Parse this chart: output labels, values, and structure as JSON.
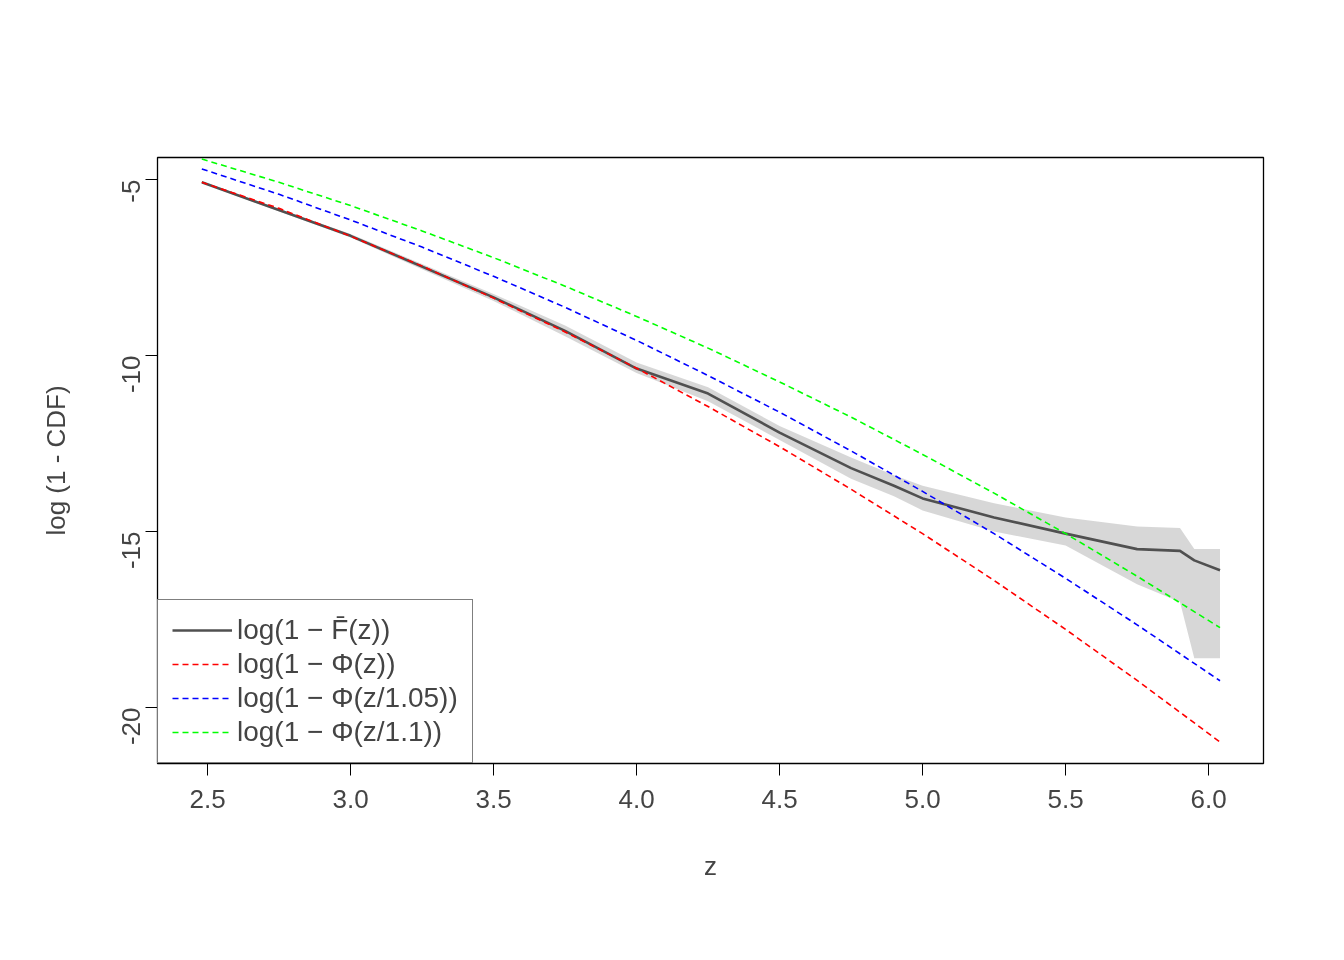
{
  "chart_data": {
    "type": "line",
    "xlabel": "z",
    "ylabel": "log (1 - CDF)",
    "x": [
      2.48,
      2.75,
      3.0,
      3.25,
      3.5,
      3.75,
      4.0,
      4.25,
      4.5,
      4.75,
      5.0,
      5.25,
      5.5,
      5.75,
      6.04
    ],
    "series": [
      {
        "name": "log(1 − F̄(z))",
        "color": "#505050",
        "type": "line",
        "line_style": "solid",
        "x": [
          2.48,
          3.0,
          3.5,
          3.75,
          4.0,
          4.25,
          4.5,
          4.75,
          4.9,
          5.0,
          5.25,
          5.5,
          5.75,
          5.9,
          5.95,
          6.04
        ],
        "values": [
          -5.08,
          -6.6,
          -8.35,
          -9.3,
          -10.37,
          -11.08,
          -12.19,
          -13.2,
          -13.7,
          -14.06,
          -14.6,
          -15.06,
          -15.5,
          -15.55,
          -15.82,
          -16.1
        ],
        "lower": [
          -5.1,
          -6.65,
          -8.45,
          -9.45,
          -10.5,
          -11.3,
          -12.4,
          -13.5,
          -14.0,
          -14.4,
          -15.0,
          -15.4,
          -16.5,
          -17.0,
          -18.6,
          -18.6
        ],
        "upper": [
          -5.05,
          -6.55,
          -8.25,
          -9.15,
          -10.2,
          -10.9,
          -12.0,
          -12.9,
          -13.4,
          -13.7,
          -14.2,
          -14.6,
          -14.86,
          -14.9,
          -15.5,
          -15.5
        ]
      },
      {
        "name": "log(1 − Φ(z))",
        "color": "#ff0000",
        "values": [
          -5.08,
          -5.82,
          -6.61,
          -7.46,
          -8.37,
          -9.33,
          -10.36,
          -11.45,
          -12.59,
          -13.8,
          -15.06,
          -16.39,
          -17.78,
          -19.23,
          -20.98
        ]
      },
      {
        "name": "log(1 − Φ(z/1.05))",
        "color": "#0000ff",
        "values": [
          -4.7,
          -5.42,
          -6.15,
          -6.92,
          -7.75,
          -8.63,
          -9.57,
          -10.57,
          -11.61,
          -12.71,
          -13.86,
          -15.06,
          -16.33,
          -17.65,
          -19.24
        ]
      },
      {
        "name": "log(1 − Φ(z/1.1))",
        "color": "#00ff00",
        "values": [
          -4.42,
          -5.08,
          -5.74,
          -6.46,
          -7.22,
          -8.03,
          -8.89,
          -9.79,
          -10.75,
          -11.75,
          -12.81,
          -13.91,
          -15.06,
          -16.27,
          -17.73
        ]
      }
    ],
    "line_style": "dashed",
    "marker": "none",
    "grid": false,
    "legend": "bottom left",
    "xlim": [
      2.325,
      6.192
    ],
    "ylim": [
      -21.59,
      -4.375
    ],
    "xticks": [
      2.5,
      {
        "value": 3,
        "label": "3.0"
      },
      3.5,
      {
        "value": 4,
        "label": "4.0"
      },
      4.5,
      {
        "value": 5,
        "label": "5.0"
      },
      5.5,
      {
        "value": 6,
        "label": "6.0"
      }
    ],
    "yticks": [
      -5,
      -10,
      -15,
      -20
    ]
  }
}
